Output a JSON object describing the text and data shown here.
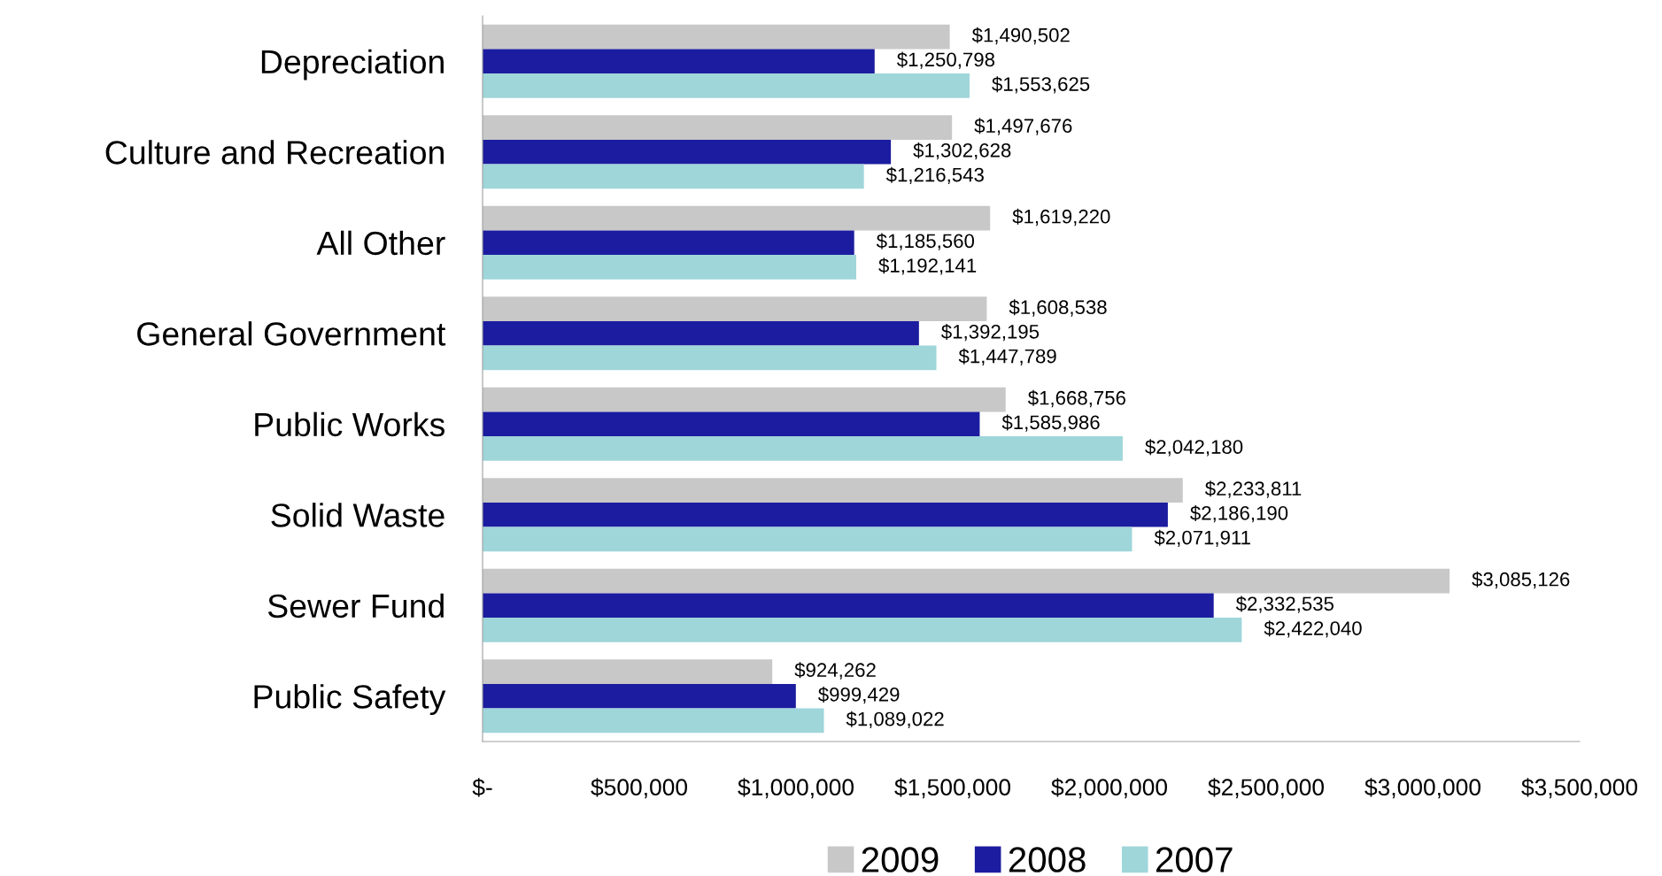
{
  "chart_data": {
    "type": "bar",
    "orientation": "horizontal",
    "categories": [
      "Depreciation",
      "Culture and Recreation",
      "All Other",
      "General Government",
      "Public Works",
      "Solid Waste",
      "Sewer Fund",
      "Public Safety"
    ],
    "series": [
      {
        "name": "2009",
        "color": "#c8c8c8",
        "values": [
          1490502,
          1497676,
          1619220,
          1608538,
          1668756,
          2233811,
          3085126,
          924262
        ],
        "value_labels": [
          "$1,490,502",
          "$1,497,676",
          "$1,619,220",
          "$1,608,538",
          "$1,668,756",
          "$2,233,811",
          "$3,085,126",
          "$924,262"
        ]
      },
      {
        "name": "2008",
        "color": "#1c1ca0",
        "values": [
          1250798,
          1302628,
          1185560,
          1392195,
          1585986,
          2186190,
          2332535,
          999429
        ],
        "value_labels": [
          "$1,250,798",
          "$1,302,628",
          "$1,185,560",
          "$1,392,195",
          "$1,585,986",
          "$2,186,190",
          "$2,332,535",
          "$999,429"
        ]
      },
      {
        "name": "2007",
        "color": "#9fd6da",
        "values": [
          1553625,
          1216543,
          1192141,
          1447789,
          2042180,
          2071911,
          2422040,
          1089022
        ],
        "value_labels": [
          "$1,553,625",
          "$1,216,543",
          "$1,192,141",
          "$1,447,789",
          "$2,042,180",
          "$2,071,911",
          "$2,422,040",
          "$1,089,022"
        ]
      }
    ],
    "xlim": [
      0,
      3500000
    ],
    "xticks": [
      {
        "value": 0,
        "label": "$-"
      },
      {
        "value": 500000,
        "label": "$500,000"
      },
      {
        "value": 1000000,
        "label": "$1,000,000"
      },
      {
        "value": 1500000,
        "label": "$1,500,000"
      },
      {
        "value": 2000000,
        "label": "$2,000,000"
      },
      {
        "value": 2500000,
        "label": "$2,500,000"
      },
      {
        "value": 3000000,
        "label": "$3,000,000"
      },
      {
        "value": 3500000,
        "label": "$3,500,000"
      }
    ],
    "grid": false,
    "legend": "bottom"
  }
}
